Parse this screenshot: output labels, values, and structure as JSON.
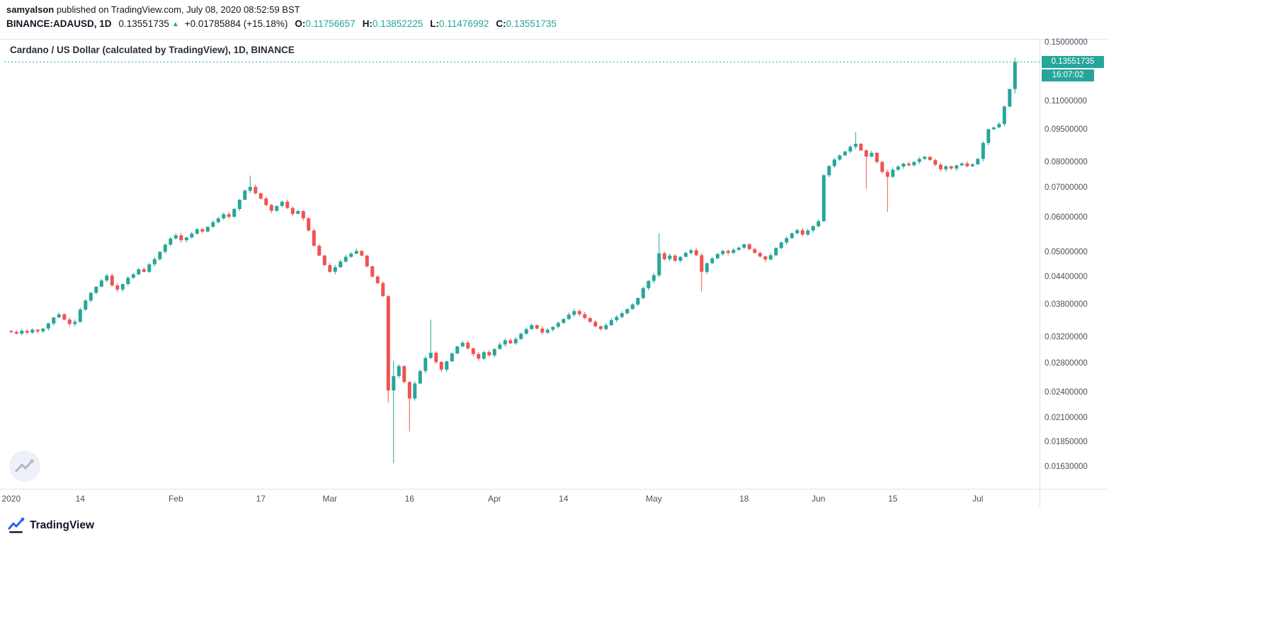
{
  "header": {
    "author": "samyalson",
    "published": " published on TradingView.com, July 08, 2020 08:52:59 BST",
    "symbol": "BINANCE:ADAUSD, 1D",
    "last_price": "0.13551735",
    "up_arrow": "▲",
    "change": "+0.01785884 (+15.18%)",
    "o_label": "O:",
    "o_value": "0.11756657",
    "h_label": "H:",
    "h_value": "0.13852225",
    "l_label": "L:",
    "l_value": "0.11476992",
    "c_label": "C:",
    "c_value": "0.13551735"
  },
  "chart": {
    "title": "Cardano / US Dollar (calculated by TradingView), 1D, BINANCE"
  },
  "price_scale": {
    "tick_labels": [
      "0.15000000",
      "0.11000000",
      "0.09500000",
      "0.08000000",
      "0.07000000",
      "0.06000000",
      "0.05000000",
      "0.04400000",
      "0.03800000",
      "0.03200000",
      "0.02800000",
      "0.02400000",
      "0.02100000",
      "0.01850000",
      "0.01630000"
    ],
    "tick_values": [
      0.15,
      0.11,
      0.095,
      0.08,
      0.07,
      0.06,
      0.05,
      0.044,
      0.038,
      0.032,
      0.028,
      0.024,
      0.021,
      0.0185,
      0.0163
    ],
    "last_price_label": "0.13551735",
    "countdown": "16:07:02"
  },
  "time_scale": {
    "labels": [
      {
        "text": "2020",
        "day": 0
      },
      {
        "text": "14",
        "day": 13
      },
      {
        "text": "Feb",
        "day": 31
      },
      {
        "text": "17",
        "day": 47
      },
      {
        "text": "Mar",
        "day": 60
      },
      {
        "text": "16",
        "day": 75
      },
      {
        "text": "Apr",
        "day": 91
      },
      {
        "text": "14",
        "day": 104
      },
      {
        "text": "May",
        "day": 121
      },
      {
        "text": "18",
        "day": 138
      },
      {
        "text": "Jun",
        "day": 152
      },
      {
        "text": "15",
        "day": 166
      },
      {
        "text": "Jul",
        "day": 182
      }
    ]
  },
  "footer": {
    "brand": "TradingView"
  },
  "colors": {
    "up": "#26a69a",
    "down": "#ef5350",
    "accent": "#26a69a",
    "axis_text": "#4a505e"
  },
  "chart_data": {
    "type": "candlestick",
    "title": "Cardano / US Dollar (calculated by TradingView)",
    "symbol": "BINANCE:ADAUSD",
    "interval": "1D",
    "exchange": "BINANCE",
    "scale": "log",
    "start_date": "2020-01-01",
    "end_date": "2020-07-08",
    "ylim": [
      0.01453,
      0.1528
    ],
    "grid": false,
    "first_open": 0.0332,
    "closes": [
      0.033,
      0.0327,
      0.0332,
      0.0329,
      0.0334,
      0.0331,
      0.0336,
      0.0345,
      0.0356,
      0.0362,
      0.0352,
      0.0344,
      0.0348,
      0.0371,
      0.0389,
      0.0405,
      0.0418,
      0.0432,
      0.0443,
      0.0421,
      0.0412,
      0.0424,
      0.0438,
      0.0446,
      0.0458,
      0.0452,
      0.047,
      0.0483,
      0.0502,
      0.0521,
      0.0538,
      0.0547,
      0.0533,
      0.0541,
      0.0552,
      0.0565,
      0.0558,
      0.0572,
      0.0586,
      0.0598,
      0.0611,
      0.0603,
      0.0628,
      0.0659,
      0.0691,
      0.0705,
      0.0682,
      0.0663,
      0.0641,
      0.0622,
      0.0638,
      0.0652,
      0.0631,
      0.0612,
      0.0621,
      0.0598,
      0.0561,
      0.0518,
      0.0492,
      0.0468,
      0.0452,
      0.0463,
      0.0477,
      0.0489,
      0.0497,
      0.0504,
      0.0492,
      0.0465,
      0.0441,
      0.0426,
      0.0398,
      0.0243,
      0.0262,
      0.0276,
      0.0254,
      0.0233,
      0.0252,
      0.0269,
      0.0288,
      0.0296,
      0.0282,
      0.0271,
      0.0283,
      0.0295,
      0.0306,
      0.0312,
      0.0303,
      0.0294,
      0.0287,
      0.0297,
      0.0292,
      0.0302,
      0.0309,
      0.0316,
      0.0311,
      0.0318,
      0.0327,
      0.0335,
      0.0342,
      0.0336,
      0.0329,
      0.0334,
      0.0339,
      0.0346,
      0.0353,
      0.0361,
      0.0368,
      0.0362,
      0.0355,
      0.0348,
      0.034,
      0.0335,
      0.0342,
      0.0351,
      0.0357,
      0.0364,
      0.0372,
      0.0381,
      0.0394,
      0.0415,
      0.0431,
      0.0444,
      0.0498,
      0.0483,
      0.0492,
      0.0479,
      0.0489,
      0.0499,
      0.0506,
      0.0493,
      0.0452,
      0.0473,
      0.0485,
      0.0496,
      0.0504,
      0.0499,
      0.0507,
      0.0513,
      0.0522,
      0.0509,
      0.0499,
      0.049,
      0.0482,
      0.0493,
      0.0512,
      0.0527,
      0.0539,
      0.0553,
      0.0562,
      0.0549,
      0.0561,
      0.0574,
      0.0589,
      0.0749,
      0.0786,
      0.0813,
      0.0831,
      0.0848,
      0.0869,
      0.0883,
      0.0853,
      0.0826,
      0.0842,
      0.0803,
      0.0762,
      0.0743,
      0.0771,
      0.0784,
      0.0796,
      0.0789,
      0.0803,
      0.0816,
      0.0825,
      0.0811,
      0.0792,
      0.0773,
      0.0785,
      0.0776,
      0.0789,
      0.0797,
      0.0785,
      0.0793,
      0.0816,
      0.0887,
      0.0953,
      0.0962,
      0.0979,
      0.1073,
      0.1176,
      0.13551735
    ],
    "overrides": {
      "45": {
        "h": 0.0748
      },
      "71": {
        "l": 0.0228
      },
      "72": {
        "l": 0.0166,
        "h": 0.0284
      },
      "75": {
        "l": 0.0196
      },
      "79": {
        "h": 0.0352
      },
      "122": {
        "h": 0.0553
      },
      "130": {
        "l": 0.0408
      },
      "159": {
        "h": 0.0938
      },
      "161": {
        "l": 0.0698
      },
      "165": {
        "l": 0.0618
      },
      "189": {
        "o": 0.11756657,
        "h": 0.13852225,
        "l": 0.11476992,
        "c": 0.13551735
      }
    },
    "last_price": 0.13551735,
    "last_price_line": "dotted"
  }
}
